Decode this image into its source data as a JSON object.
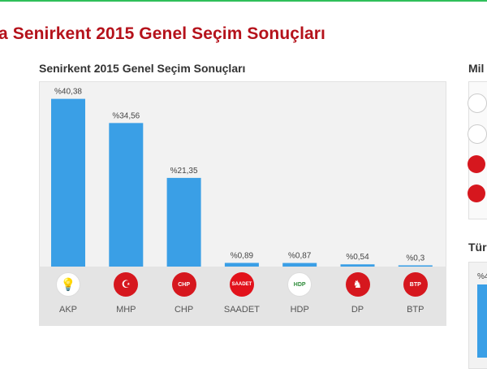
{
  "page": {
    "title": "a Senirkent 2015 Genel Seçim Sonuçları"
  },
  "chart_data": {
    "type": "bar",
    "title": "Senirkent 2015 Genel Seçim Sonuçları",
    "categories": [
      "AKP",
      "MHP",
      "CHP",
      "SAADET",
      "HDP",
      "DP",
      "BTP"
    ],
    "values": [
      40.38,
      34.56,
      21.35,
      0.89,
      0.87,
      0.54,
      0.3
    ],
    "value_labels": [
      "%40,38",
      "%34,56",
      "%21,35",
      "%0,89",
      "%0,87",
      "%0,54",
      "%0,3"
    ],
    "bar_color": "#3a9fe6",
    "ylim": [
      0,
      45
    ],
    "grid": false,
    "legend": "none"
  },
  "parties": [
    {
      "name": "AKP",
      "logo_icon": "akp-bulb-logo-icon",
      "logo_text": "💡",
      "color": "#f7a800"
    },
    {
      "name": "MHP",
      "logo_icon": "mhp-crescents-logo-icon",
      "logo_text": "☪",
      "color": "#d6171e"
    },
    {
      "name": "CHP",
      "logo_icon": "chp-arrows-logo-icon",
      "logo_text": "CHP",
      "color": "#d6171e"
    },
    {
      "name": "SAADET",
      "logo_icon": "saadet-crescent-logo-icon",
      "logo_text": "SAADET",
      "color": "#e2121b"
    },
    {
      "name": "HDP",
      "logo_icon": "hdp-tree-logo-icon",
      "logo_text": "HDP",
      "color": "#2e8b3a"
    },
    {
      "name": "DP",
      "logo_icon": "dp-horse-logo-icon",
      "logo_text": "♞",
      "color": "#d6171e"
    },
    {
      "name": "BTP",
      "logo_icon": "btp-stars-logo-icon",
      "logo_text": "BTP",
      "color": "#d6171e"
    }
  ],
  "side": {
    "title1": "Mil",
    "title2": "Tür",
    "value_label": "%4"
  }
}
